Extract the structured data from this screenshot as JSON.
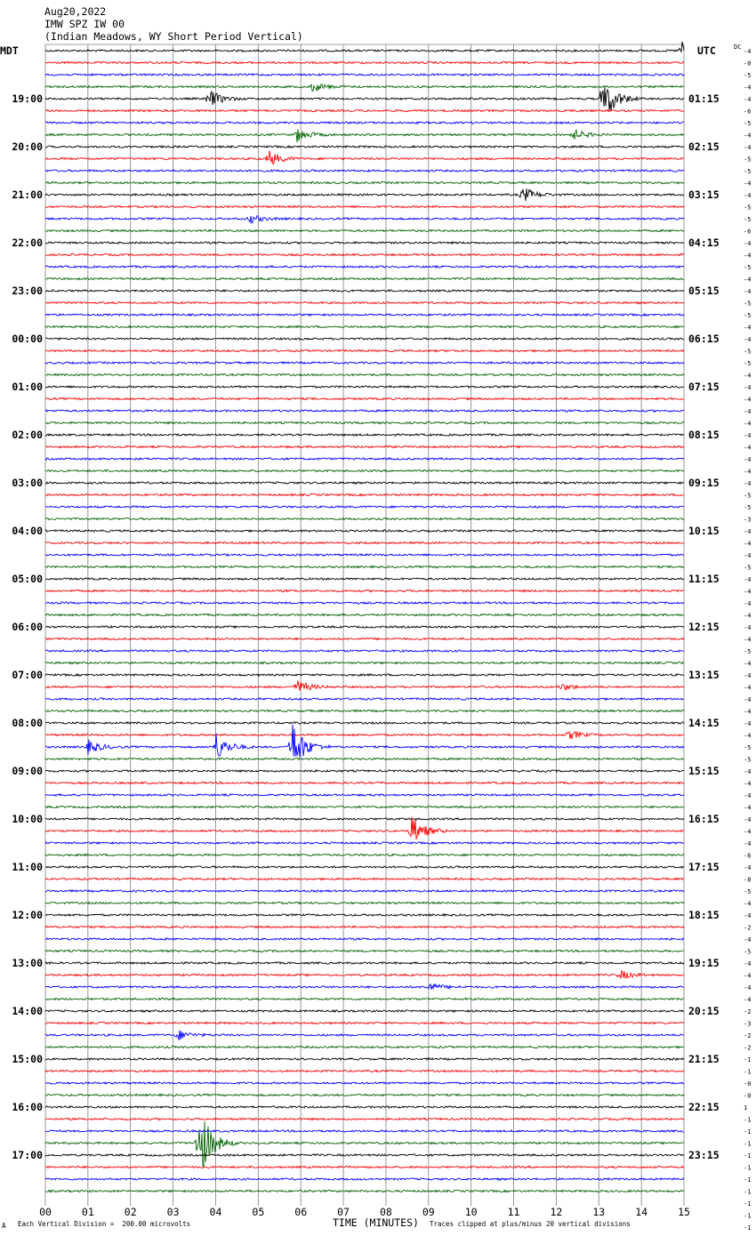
{
  "header": {
    "date": "Aug20,2022",
    "station": "IMW SPZ IW 00",
    "location": "(Indian Meadows, WY Short Period Vertical)"
  },
  "left_tz": "MDT",
  "right_tz": "UTC",
  "dc_label": "DC",
  "footer": {
    "scale": "Each Vertical Division =  200.00 microvolts",
    "clip": "Traces clipped at plus/minus 20 vertical divisions",
    "mark": "A"
  },
  "colors": {
    "black": "#000000",
    "red": "#ff0000",
    "blue": "#0000ff",
    "green": "#006400",
    "grid": "#7f7f7f"
  },
  "chart_data": {
    "type": "line",
    "title": "IMW SPZ IW 00",
    "xlabel": "TIME (MINUTES)",
    "x_ticks": [
      "00",
      "01",
      "02",
      "03",
      "04",
      "05",
      "06",
      "07",
      "08",
      "09",
      "10",
      "11",
      "12",
      "13",
      "14",
      "15"
    ],
    "xlim": [
      0,
      15
    ],
    "grid": true,
    "trace_color_cycle": [
      "black",
      "red",
      "blue",
      "green"
    ],
    "left_hour_labels": [
      "19:00",
      "20:00",
      "21:00",
      "22:00",
      "23:00",
      "00:00",
      "01:00",
      "02:00",
      "03:00",
      "04:00",
      "05:00",
      "06:00",
      "07:00",
      "08:00",
      "09:00",
      "10:00",
      "11:00",
      "12:00",
      "13:00",
      "14:00",
      "15:00",
      "16:00",
      "17:00"
    ],
    "right_hour_labels": [
      "01:15",
      "02:15",
      "03:15",
      "04:15",
      "05:15",
      "06:15",
      "07:15",
      "08:15",
      "09:15",
      "10:15",
      "11:15",
      "12:15",
      "13:15",
      "14:15",
      "15:15",
      "16:15",
      "17:15",
      "18:15",
      "19:15",
      "20:15",
      "21:15",
      "22:15",
      "23:15"
    ],
    "dc_offsets": [
      "-4",
      "-0",
      "-5",
      "-4",
      "-4",
      "-6",
      "-5",
      "-4",
      "-4",
      "-5",
      "-5",
      "-4",
      "-4",
      "-5",
      "-5",
      "-6",
      "-4",
      "-4",
      "-5",
      "-4",
      "-4",
      "-5",
      "-5",
      "-4",
      "-4",
      "-5",
      "-5",
      "-4",
      "-4",
      "-4",
      "-4",
      "-4",
      "-4",
      "-4",
      "-4",
      "-4",
      "-4",
      "-5",
      "-5",
      "-3",
      "-4",
      "-4",
      "-4",
      "-5",
      "-4",
      "-4",
      "-4",
      "-4",
      "-4",
      "-4",
      "-5",
      "-4",
      "-4",
      "-4",
      "-4",
      "-4",
      "-4",
      "-4",
      "-5",
      "-5",
      "-4",
      "-4",
      "-4",
      "-4",
      "-4",
      "-4",
      "-4",
      "-6",
      "-4",
      "-8",
      "-5",
      "-4",
      "-4",
      "-2",
      "-4",
      "-5",
      "-4",
      "-4",
      "-4",
      "-4",
      "-2",
      "-3",
      "-2",
      "-2",
      "-1",
      "-1",
      "-0",
      "-0",
      "1",
      "-1",
      "-1",
      "-1",
      "-1",
      "-1",
      "-1",
      "-1",
      "-1",
      "-1",
      "-1",
      "-0",
      "-0",
      "0",
      "1",
      "6"
    ],
    "events": [
      {
        "trace": 0,
        "minute": 14.95,
        "amplitude": 10
      },
      {
        "trace": 4,
        "minute": 3.85,
        "amplitude": 10
      },
      {
        "trace": 3,
        "minute": 6.25,
        "amplitude": 6
      },
      {
        "trace": 4,
        "minute": 13.1,
        "amplitude": 28
      },
      {
        "trace": 7,
        "minute": 5.9,
        "amplitude": 8
      },
      {
        "trace": 7,
        "minute": 12.4,
        "amplitude": 6
      },
      {
        "trace": 9,
        "minute": 5.25,
        "amplitude": 9
      },
      {
        "trace": 12,
        "minute": 11.2,
        "amplitude": 9
      },
      {
        "trace": 14,
        "minute": 4.8,
        "amplitude": 5
      },
      {
        "trace": 53,
        "minute": 5.9,
        "amplitude": 8
      },
      {
        "trace": 53,
        "minute": 12.1,
        "amplitude": 4
      },
      {
        "trace": 57,
        "minute": 12.3,
        "amplitude": 5
      },
      {
        "trace": 58,
        "minute": 4.0,
        "amplitude": 16
      },
      {
        "trace": 58,
        "minute": 5.8,
        "amplitude": 30
      },
      {
        "trace": 58,
        "minute": 1.0,
        "amplitude": 8
      },
      {
        "trace": 65,
        "minute": 8.6,
        "amplitude": 18
      },
      {
        "trace": 77,
        "minute": 13.5,
        "amplitude": 5
      },
      {
        "trace": 78,
        "minute": 9.0,
        "amplitude": 5
      },
      {
        "trace": 82,
        "minute": 3.1,
        "amplitude": 6
      },
      {
        "trace": 91,
        "minute": 3.6,
        "amplitude": 45
      }
    ]
  }
}
